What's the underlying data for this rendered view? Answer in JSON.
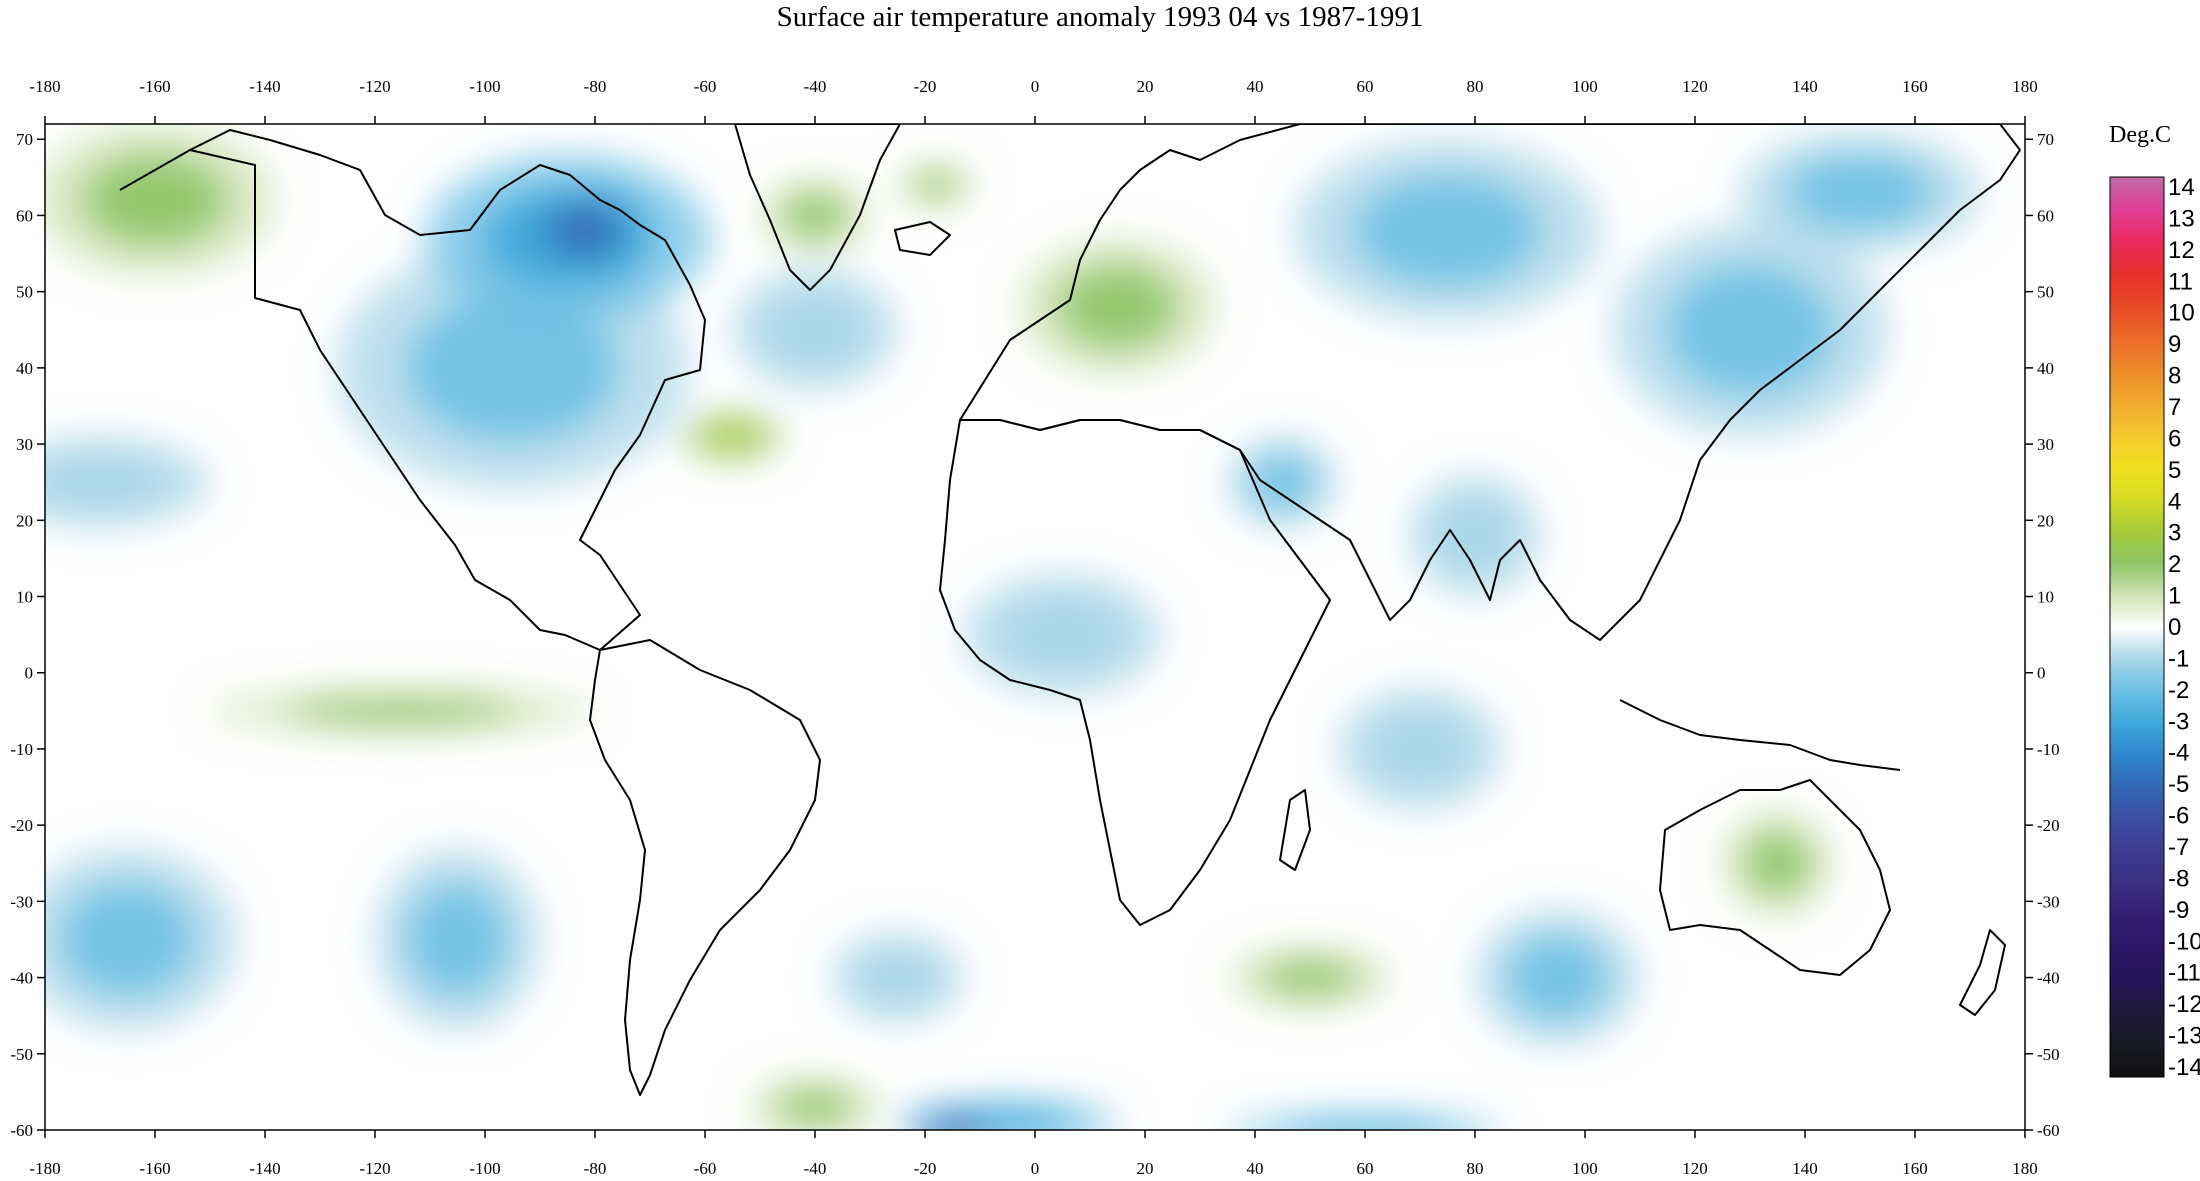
{
  "title": "Surface air temperature anomaly 1993 04 vs 1987-1991",
  "colorbar": {
    "unit": "Deg.C",
    "levels": [
      14,
      13,
      12,
      11,
      10,
      9,
      8,
      7,
      6,
      5,
      4,
      3,
      2,
      1,
      0,
      -1,
      -2,
      -3,
      -4,
      -5,
      -6,
      -7,
      -8,
      -9,
      -10,
      -11,
      -12,
      -13,
      -14
    ],
    "colors": {
      "14": "#c06aa8",
      "13": "#e0409a",
      "12": "#ea2a5e",
      "11": "#e8302c",
      "10": "#e84a26",
      "9": "#ec6a2a",
      "8": "#ee8a2c",
      "7": "#f0a82e",
      "6": "#f4c830",
      "5": "#f2e020",
      "4": "#d6dc24",
      "3": "#a8cc3a",
      "2": "#8cc464",
      "1": "#cfe3b4",
      "0": "#ffffff",
      "-1": "#a8d6e8",
      "-2": "#6cc0e4",
      "-3": "#3ea8dc",
      "-4": "#2e86cc",
      "-5": "#3466b4",
      "-6": "#3c4ea0",
      "-7": "#3c3c92",
      "-8": "#3a2e84",
      "-9": "#341e74",
      "-10": "#2c1664",
      "-11": "#241458",
      "-12": "#1e1838",
      "-13": "#181a24",
      "-14": "#101010"
    }
  },
  "axes": {
    "x_ticks": [
      -180,
      -160,
      -140,
      -120,
      -100,
      -80,
      -60,
      -40,
      -20,
      0,
      20,
      40,
      60,
      80,
      100,
      120,
      140,
      160,
      180
    ],
    "y_ticks": [
      70,
      60,
      50,
      40,
      30,
      20,
      10,
      0,
      -10,
      -20,
      -30,
      -40,
      -50,
      -60
    ],
    "lon_range": [
      -180,
      180
    ],
    "lat_range": [
      -60,
      72
    ]
  },
  "anomaly_regions": [
    {
      "name": "north-america",
      "lon": -95,
      "lat": 40,
      "rx": 32,
      "ry": 16,
      "value": -2.5
    },
    {
      "name": "hudson-bay-canada",
      "lon": -85,
      "lat": 57,
      "rx": 26,
      "ry": 11,
      "value": -3.5
    },
    {
      "name": "canadian-shield-core",
      "lon": -82,
      "lat": 58,
      "rx": 12,
      "ry": 6,
      "value": -5
    },
    {
      "name": "alaska",
      "lon": -160,
      "lat": 62,
      "rx": 22,
      "ry": 10,
      "value": 2
    },
    {
      "name": "greenland-south",
      "lon": -40,
      "lat": 60,
      "rx": 10,
      "ry": 5,
      "value": 1.5
    },
    {
      "name": "iceland",
      "lon": -18,
      "lat": 64,
      "rx": 7,
      "ry": 3,
      "value": 2
    },
    {
      "name": "atlantic-gulfstream",
      "lon": -55,
      "lat": 31,
      "rx": 9,
      "ry": 3,
      "value": 2.5
    },
    {
      "name": "central-europe",
      "lon": 15,
      "lat": 48,
      "rx": 18,
      "ry": 9,
      "value": 1.5
    },
    {
      "name": "siberia-west",
      "lon": 75,
      "lat": 58,
      "rx": 28,
      "ry": 12,
      "value": -2.5
    },
    {
      "name": "east-asia",
      "lon": 130,
      "lat": 45,
      "rx": 25,
      "ry": 14,
      "value": -2.5
    },
    {
      "name": "siberia-east",
      "lon": 150,
      "lat": 63,
      "rx": 22,
      "ry": 8,
      "value": -2
    },
    {
      "name": "india",
      "lon": 80,
      "lat": 18,
      "rx": 12,
      "ry": 8,
      "value": -1.5
    },
    {
      "name": "arabia",
      "lon": 45,
      "lat": 25,
      "rx": 10,
      "ry": 6,
      "value": -2
    },
    {
      "name": "north-pacific",
      "lon": -170,
      "lat": 25,
      "rx": 20,
      "ry": 6,
      "value": -1.5
    },
    {
      "name": "south-pacific",
      "lon": -165,
      "lat": -35,
      "rx": 20,
      "ry": 12,
      "value": -2.5
    },
    {
      "name": "southeast-pacific",
      "lon": -105,
      "lat": -35,
      "rx": 15,
      "ry": 12,
      "value": -2
    },
    {
      "name": "tropical-pacific-band",
      "lon": -115,
      "lat": -5,
      "rx": 35,
      "ry": 3,
      "value": 1.5
    },
    {
      "name": "australia",
      "lon": 135,
      "lat": -25,
      "rx": 10,
      "ry": 7,
      "value": 1.5
    },
    {
      "name": "indian-ocean-south",
      "lon": 95,
      "lat": -40,
      "rx": 15,
      "ry": 9,
      "value": -2
    },
    {
      "name": "south-indian-ocean-warm",
      "lon": 50,
      "lat": -40,
      "rx": 15,
      "ry": 4,
      "value": 2
    },
    {
      "name": "southern-atlantic-cold",
      "lon": -25,
      "lat": -40,
      "rx": 12,
      "ry": 6,
      "value": -1.5
    },
    {
      "name": "south-atlantic-warm",
      "lon": -40,
      "lat": -57,
      "rx": 12,
      "ry": 4,
      "value": 2
    },
    {
      "name": "antarctic-coast-atlantic",
      "lon": -5,
      "lat": -59,
      "rx": 20,
      "ry": 3,
      "value": -3
    },
    {
      "name": "antarctic-core",
      "lon": -15,
      "lat": -60,
      "rx": 8,
      "ry": 2,
      "value": -6
    },
    {
      "name": "antarctic-coast-indian",
      "lon": 60,
      "lat": -60,
      "rx": 25,
      "ry": 2,
      "value": -3
    },
    {
      "name": "equatorial-africa-west",
      "lon": 5,
      "lat": 5,
      "rx": 18,
      "ry": 8,
      "value": -1
    },
    {
      "name": "central-indian-ocean",
      "lon": 70,
      "lat": -10,
      "rx": 15,
      "ry": 8,
      "value": -1.5
    },
    {
      "name": "north-atlantic",
      "lon": -40,
      "lat": 45,
      "rx": 15,
      "ry": 8,
      "value": -1
    }
  ]
}
